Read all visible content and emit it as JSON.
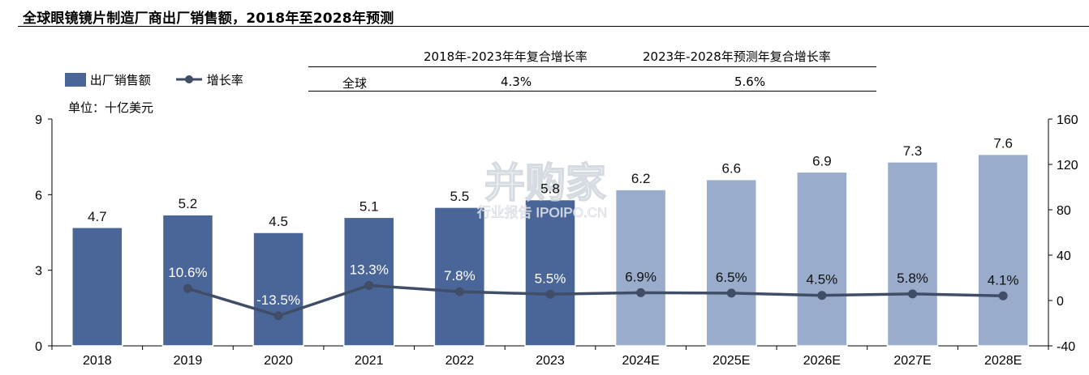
{
  "title": "全球眼镜镜片制造厂商出厂销售额，2018年至2028年预测",
  "cagr_table": {
    "header_1": "2018年-2023年年复合增长率",
    "header_2": "2023年-2028年预测年复合增长率",
    "row_label": "全球",
    "value_1": "4.3%",
    "value_2": "5.6%"
  },
  "unit_label": "单位：十亿美元",
  "watermark": {
    "main": "并购家",
    "sub": "行业报告 IPOIPO.CN"
  },
  "colors": {
    "actual_bar": "#4a6698",
    "forecast_bar": "#9aaccb",
    "line": "#3f4d66"
  },
  "chart_data": {
    "type": "bar",
    "categories": [
      "2018",
      "2019",
      "2020",
      "2021",
      "2022",
      "2023",
      "2024E",
      "2025E",
      "2026E",
      "2027E",
      "2028E"
    ],
    "series": [
      {
        "name": "出厂销售额",
        "type": "bar",
        "axis": "left",
        "values": [
          4.7,
          5.2,
          4.5,
          5.1,
          5.5,
          5.8,
          6.2,
          6.6,
          6.9,
          7.3,
          7.6
        ],
        "labels": [
          "4.7",
          "5.2",
          "4.5",
          "5.1",
          "5.5",
          "5.8",
          "6.2",
          "6.6",
          "6.9",
          "7.3",
          "7.6"
        ],
        "forecast_from_index": 6
      },
      {
        "name": "增长率",
        "type": "line",
        "axis": "right",
        "values": [
          null,
          10.6,
          -13.5,
          13.3,
          7.8,
          5.5,
          6.9,
          6.5,
          4.5,
          5.8,
          4.1
        ],
        "labels": [
          null,
          "10.6%",
          "-13.5%",
          "13.3%",
          "7.8%",
          "5.5%",
          "6.9%",
          "6.5%",
          "4.5%",
          "5.8%",
          "4.1%"
        ]
      }
    ],
    "y_left": {
      "range": [
        0,
        9
      ],
      "ticks": [
        "0",
        "3",
        "6",
        "9"
      ]
    },
    "y_right": {
      "range": [
        -40,
        160
      ],
      "ticks": [
        "-40",
        "0",
        "40",
        "80",
        "120",
        "160"
      ]
    },
    "grid": false,
    "legend_position": "top-left"
  }
}
